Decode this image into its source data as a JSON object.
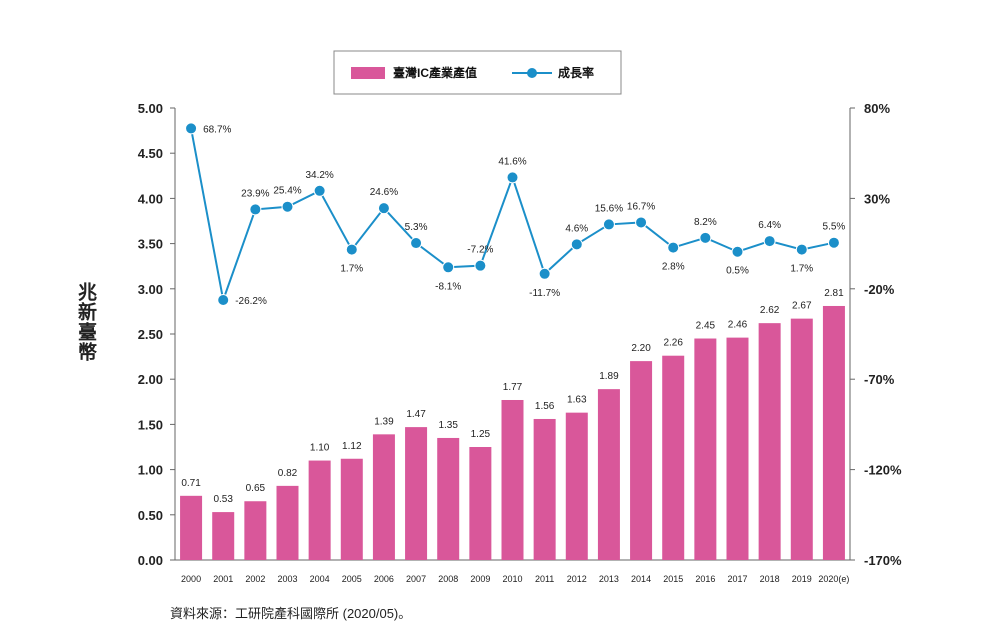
{
  "chart_data": {
    "type": "bar",
    "categories": [
      "2000",
      "2001",
      "2002",
      "2003",
      "2004",
      "2005",
      "2006",
      "2007",
      "2008",
      "2009",
      "2010",
      "2011",
      "2012",
      "2013",
      "2014",
      "2015",
      "2016",
      "2017",
      "2018",
      "2019",
      "2020(e)"
    ],
    "series": [
      {
        "name": "臺灣IC產業產值",
        "type": "bar",
        "axis": "left",
        "color": "#d9579a",
        "values": [
          0.71,
          0.53,
          0.65,
          0.82,
          1.1,
          1.12,
          1.39,
          1.47,
          1.35,
          1.25,
          1.77,
          1.56,
          1.63,
          1.89,
          2.2,
          2.26,
          2.45,
          2.46,
          2.62,
          2.67,
          2.81
        ],
        "labels": [
          "0.71",
          "0.53",
          "0.65",
          "0.82",
          "1.10",
          "1.12",
          "1.39",
          "1.47",
          "1.35",
          "1.25",
          "1.77",
          "1.56",
          "1.63",
          "1.89",
          "2.20",
          "2.26",
          "2.45",
          "2.46",
          "2.62",
          "2.67",
          "2.81"
        ]
      },
      {
        "name": "成長率",
        "type": "line",
        "axis": "right",
        "color": "#1b8fc9",
        "values": [
          68.7,
          -26.2,
          23.9,
          25.4,
          34.2,
          1.7,
          24.6,
          5.3,
          -8.1,
          -7.2,
          41.6,
          -11.7,
          4.6,
          15.6,
          16.7,
          2.8,
          8.2,
          0.5,
          6.4,
          1.7,
          5.5
        ],
        "labels": [
          "68.7%",
          "-26.2%",
          "23.9%",
          "25.4%",
          "34.2%",
          "1.7%",
          "24.6%",
          "5.3%",
          "-8.1%",
          "-7.2%",
          "41.6%",
          "-11.7%",
          "4.6%",
          "15.6%",
          "16.7%",
          "2.8%",
          "8.2%",
          "0.5%",
          "6.4%",
          "1.7%",
          "5.5%"
        ]
      }
    ],
    "ylabel": "兆新臺幣",
    "ylim": [
      0,
      5
    ],
    "y_ticks": [
      "0.00",
      "0.50",
      "1.00",
      "1.50",
      "2.00",
      "2.50",
      "3.00",
      "3.50",
      "4.00",
      "4.50",
      "5.00"
    ],
    "y2lim": [
      -170,
      80
    ],
    "y2_ticks": [
      "-170%",
      "-120%",
      "-70%",
      "-20%",
      "30%",
      "80%"
    ],
    "grid": false,
    "legend": "top-center",
    "source": "資料來源：工研院產科國際所 (2020/05)。"
  }
}
